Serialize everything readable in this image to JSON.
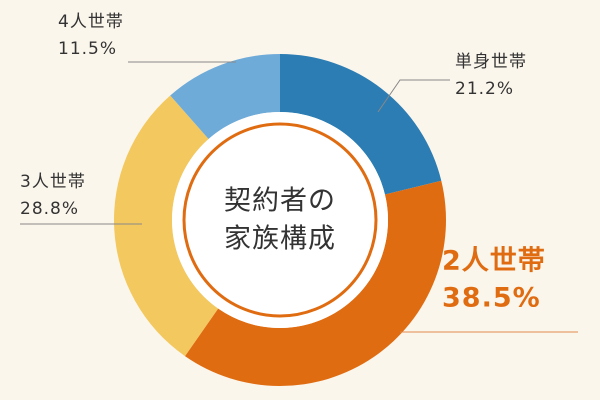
{
  "chart_data": {
    "type": "donut",
    "title": [
      "契約者の",
      "家族構成"
    ],
    "categories": [
      "単身世帯",
      "2人世帯",
      "3人世帯",
      "4人世帯"
    ],
    "values": [
      21.2,
      38.5,
      28.8,
      11.5
    ],
    "value_labels": [
      "21.2%",
      "38.5%",
      "28.8%",
      "11.5%"
    ],
    "colors": [
      "#2b7db3",
      "#e06c12",
      "#f3c85e",
      "#6fabd9"
    ],
    "highlight": 1
  }
}
